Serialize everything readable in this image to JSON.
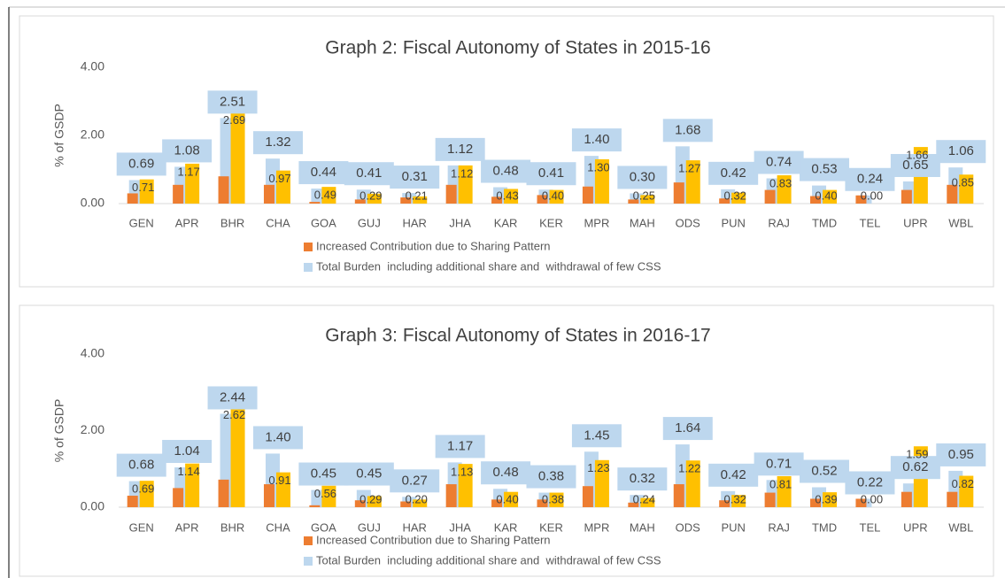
{
  "chart_data": [
    {
      "type": "bar",
      "title": "Graph 2: Fiscal Autonomy of States in 2015-16",
      "y_label": "% of GSDP",
      "categories": [
        "GEN",
        "APR",
        "BHR",
        "CHA",
        "GOA",
        "GUJ",
        "HAR",
        "JHA",
        "KAR",
        "KER",
        "MPR",
        "MAH",
        "ODS",
        "PUN",
        "RAJ",
        "TMD",
        "TEL",
        "UPR",
        "WBL"
      ],
      "ylim": [
        0,
        4
      ],
      "yticks": [
        {
          "value": 0,
          "label": "0.00"
        },
        {
          "value": 2,
          "label": "2.00"
        },
        {
          "value": 4,
          "label": "4.00"
        }
      ],
      "series": [
        {
          "name": "Total Burden  including additional share and  withdrawal of few CSS",
          "color": "#bdd7ee",
          "values": [
            0.69,
            1.08,
            2.51,
            1.32,
            0.44,
            0.41,
            0.31,
            1.12,
            0.48,
            0.41,
            1.4,
            0.3,
            1.68,
            0.42,
            0.74,
            0.53,
            0.24,
            0.65,
            1.06
          ],
          "value_labels": [
            "0.69",
            "1.08",
            "2.51",
            "1.32",
            "0.44",
            "0.41",
            "0.31",
            "1.12",
            "0.48",
            "0.41",
            "1.40",
            "0.30",
            "1.68",
            "0.42",
            "0.74",
            "0.53",
            "0.24",
            "0.65",
            "1.06"
          ]
        },
        {
          "name": "Increased Contribution due to Sharing Pattern",
          "color": "#ed7d31",
          "values": [
            0.3,
            0.55,
            0.8,
            0.55,
            0.05,
            0.12,
            0.18,
            0.55,
            0.2,
            0.25,
            0.5,
            0.12,
            0.62,
            0.15,
            0.4,
            0.22,
            0.24,
            0.4,
            0.55
          ]
        },
        {
          "color": "#ffc000",
          "values": [
            0.71,
            1.17,
            2.69,
            0.97,
            0.49,
            0.29,
            0.21,
            1.12,
            0.43,
            0.4,
            1.3,
            0.25,
            1.27,
            0.32,
            0.83,
            0.4,
            0.0,
            1.66,
            0.85
          ],
          "value_labels": [
            "0.71",
            "1.17",
            "2.69",
            "0.97",
            "0.49",
            "0.29",
            "0.21",
            "1.12",
            "0.43",
            "0.40",
            "1.30",
            "0.25",
            "1.27",
            "0.32",
            "0.83",
            "0.40",
            "0.00",
            "1.66",
            "0.85"
          ]
        }
      ]
    },
    {
      "type": "bar",
      "title": "Graph 3: Fiscal Autonomy of States in 2016-17",
      "y_label": "% of GSDP",
      "categories": [
        "GEN",
        "APR",
        "BHR",
        "CHA",
        "GOA",
        "GUJ",
        "HAR",
        "JHA",
        "KAR",
        "KER",
        "MPR",
        "MAH",
        "ODS",
        "PUN",
        "RAJ",
        "TMD",
        "TEL",
        "UPR",
        "WBL"
      ],
      "ylim": [
        0,
        4
      ],
      "yticks": [
        {
          "value": 0,
          "label": "0.00"
        },
        {
          "value": 2,
          "label": "2.00"
        },
        {
          "value": 4,
          "label": "4.00"
        }
      ],
      "series": [
        {
          "name": "Total Burden  including additional share and  withdrawal of few CSS",
          "color": "#bdd7ee",
          "values": [
            0.68,
            1.04,
            2.44,
            1.4,
            0.45,
            0.45,
            0.27,
            1.17,
            0.48,
            0.38,
            1.45,
            0.32,
            1.64,
            0.42,
            0.71,
            0.52,
            0.22,
            0.62,
            0.95
          ],
          "value_labels": [
            "0.68",
            "1.04",
            "2.44",
            "1.40",
            "0.45",
            "0.45",
            "0.27",
            "1.17",
            "0.48",
            "0.38",
            "1.45",
            "0.32",
            "1.64",
            "0.42",
            "0.71",
            "0.52",
            "0.22",
            "0.62",
            "0.95"
          ]
        },
        {
          "name": "Increased Contribution due to Sharing Pattern",
          "color": "#ed7d31",
          "values": [
            0.3,
            0.5,
            0.72,
            0.6,
            0.05,
            0.18,
            0.15,
            0.6,
            0.2,
            0.2,
            0.55,
            0.12,
            0.6,
            0.18,
            0.38,
            0.22,
            0.22,
            0.4,
            0.4
          ]
        },
        {
          "color": "#ffc000",
          "values": [
            0.69,
            1.14,
            2.62,
            0.91,
            0.56,
            0.29,
            0.2,
            1.13,
            0.4,
            0.38,
            1.23,
            0.24,
            1.22,
            0.32,
            0.81,
            0.39,
            0.0,
            1.59,
            0.82
          ],
          "value_labels": [
            "0.69",
            "1.14",
            "2.62",
            "0.91",
            "0.56",
            "0.29",
            "0.20",
            "1.13",
            "0.40",
            "0.38",
            "1.23",
            "0.24",
            "1.22",
            "0.32",
            "0.81",
            "0.39",
            "0.00",
            "1.59",
            "0.82"
          ]
        }
      ]
    }
  ]
}
